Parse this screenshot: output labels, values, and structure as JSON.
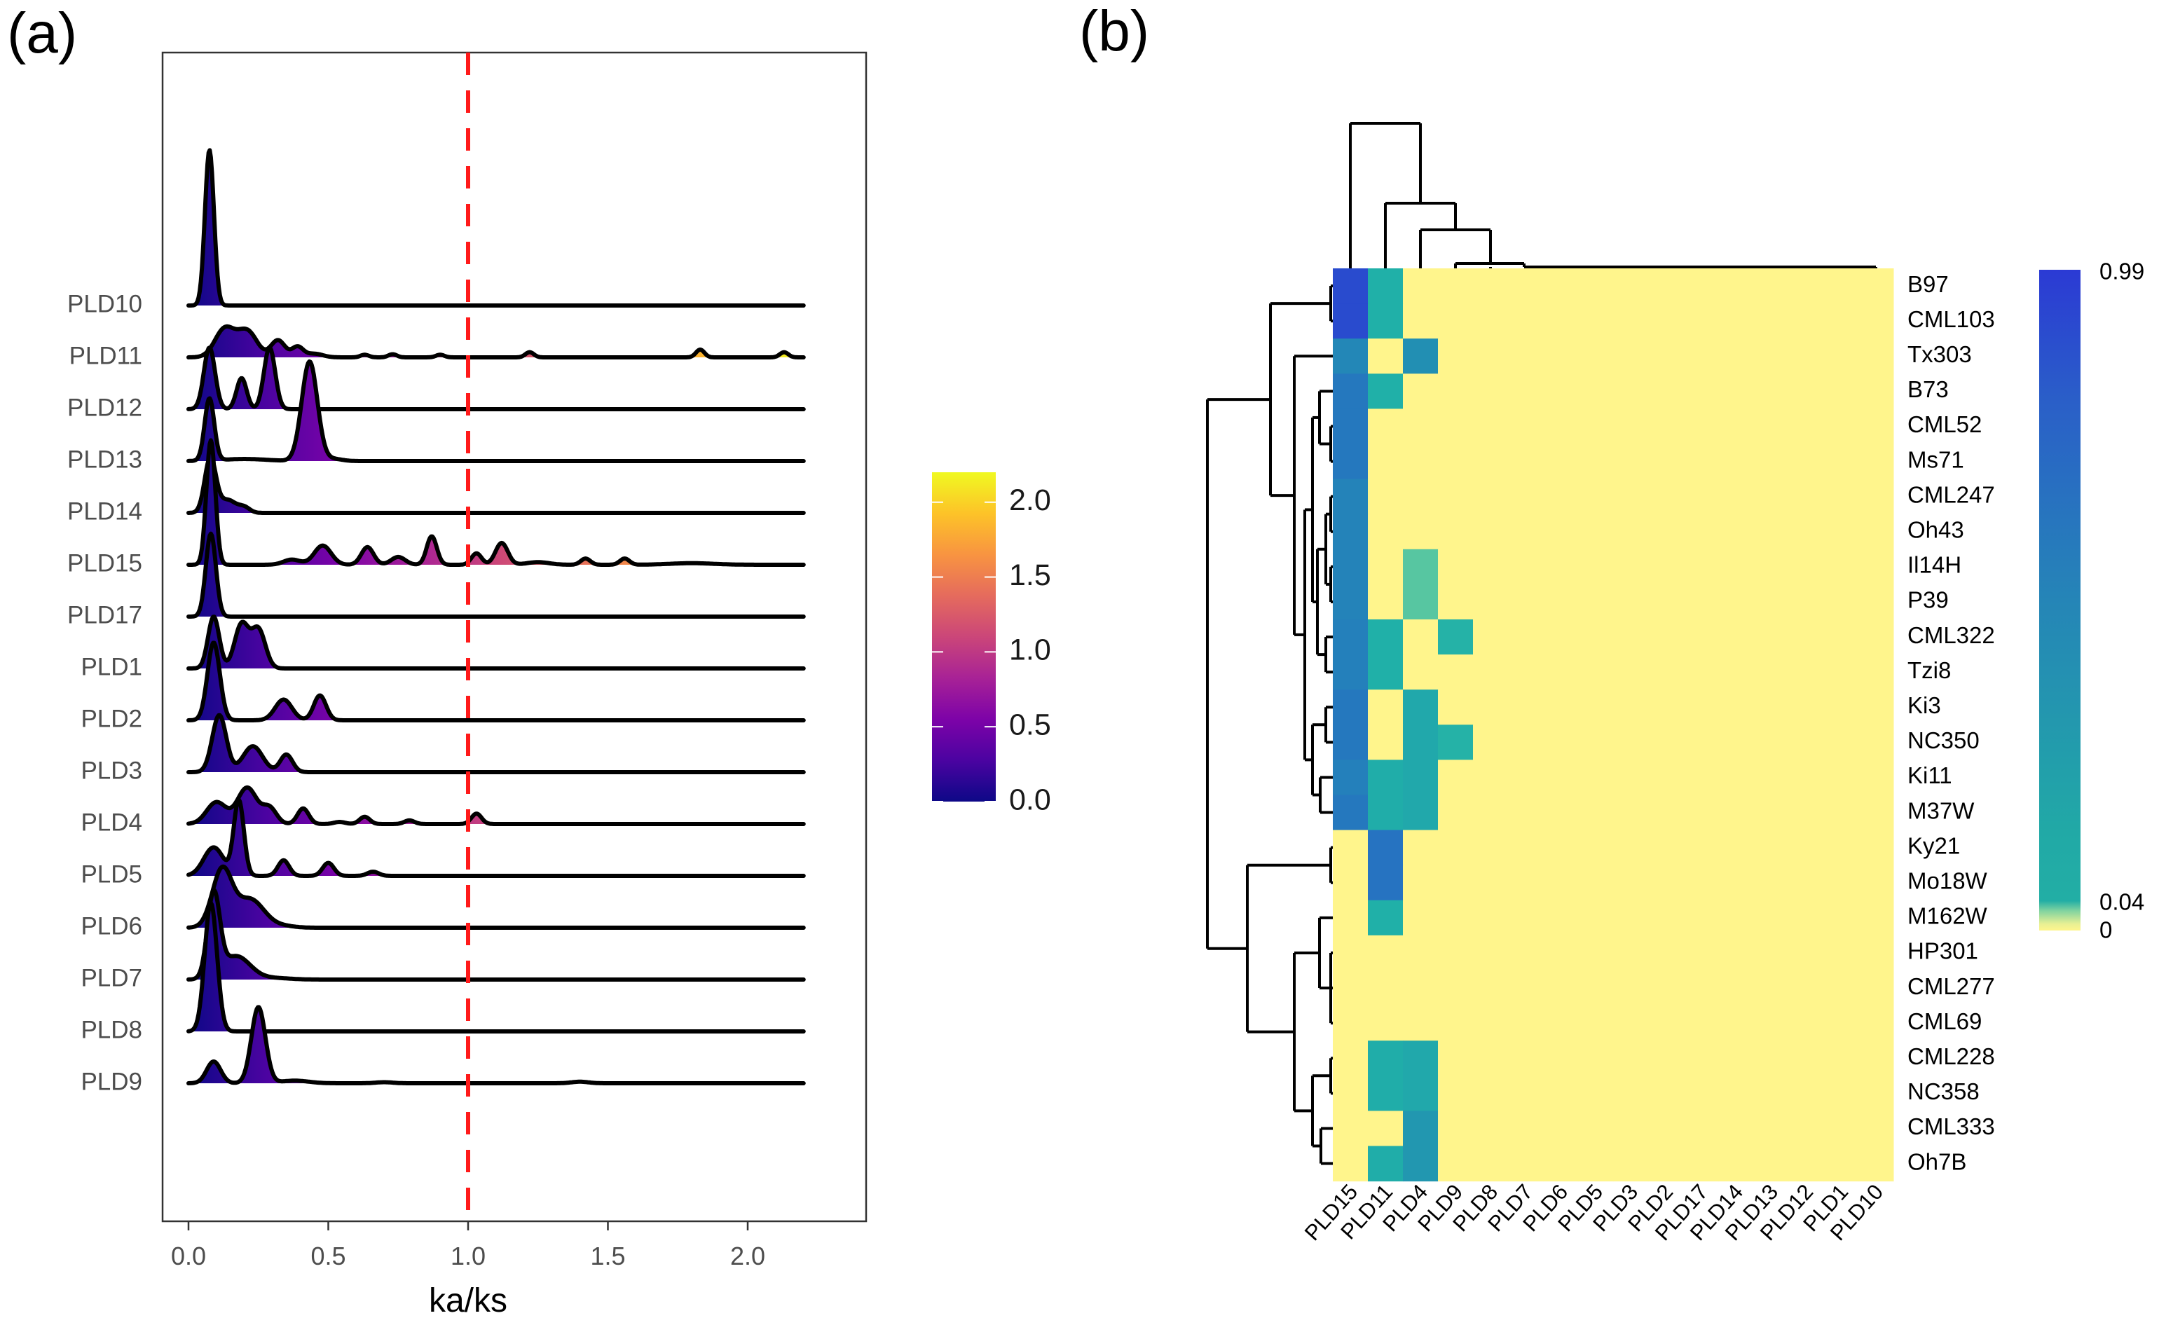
{
  "labels": {
    "a": "(a)",
    "b": "(b)"
  },
  "chart_data": [
    {
      "type": "ridgeline",
      "title": "",
      "xlabel": "ka/ks",
      "ylabel": "",
      "xlim": [
        0,
        2.2
      ],
      "xticks": [
        "0.0",
        "0.5",
        "1.0",
        "1.5",
        "2.0"
      ],
      "xtick_values": [
        0,
        0.5,
        1.0,
        1.5,
        2.0
      ],
      "reference_line": {
        "x": 1.0,
        "color": "#ff1a1a",
        "style": "dashed"
      },
      "grid": false,
      "peak_format": "[center ka/ks, relative density height, spread]",
      "series": [
        {
          "name": "PLD10",
          "peaks": [
            [
              0.075,
              3.0,
              0.016
            ]
          ]
        },
        {
          "name": "PLD11",
          "peaks": [
            [
              0.13,
              0.55,
              0.035
            ],
            [
              0.21,
              0.5,
              0.035
            ],
            [
              0.32,
              0.33,
              0.025
            ],
            [
              0.39,
              0.2,
              0.02
            ],
            [
              0.45,
              0.07,
              0.03
            ],
            [
              0.63,
              0.05,
              0.015
            ],
            [
              0.73,
              0.06,
              0.015
            ],
            [
              0.9,
              0.05,
              0.015
            ],
            [
              1.22,
              0.1,
              0.015
            ],
            [
              1.83,
              0.15,
              0.015
            ],
            [
              2.13,
              0.1,
              0.015
            ]
          ]
        },
        {
          "name": "PLD12",
          "peaks": [
            [
              0.075,
              1.19,
              0.02
            ],
            [
              0.19,
              0.6,
              0.018
            ],
            [
              0.29,
              1.19,
              0.02
            ]
          ]
        },
        {
          "name": "PLD13",
          "peaks": [
            [
              0.075,
              1.2,
              0.017
            ],
            [
              0.2,
              0.04,
              0.08
            ],
            [
              0.433,
              1.92,
              0.028
            ],
            [
              0.52,
              0.04,
              0.03
            ]
          ]
        },
        {
          "name": "PLD14",
          "peaks": [
            [
              0.078,
              1.05,
              0.02
            ],
            [
              0.14,
              0.25,
              0.03
            ],
            [
              0.2,
              0.1,
              0.02
            ]
          ]
        },
        {
          "name": "PLD15",
          "peaks": [
            [
              0.08,
              2.4,
              0.016
            ],
            [
              0.37,
              0.1,
              0.03
            ],
            [
              0.48,
              0.37,
              0.03
            ],
            [
              0.64,
              0.34,
              0.022
            ],
            [
              0.75,
              0.15,
              0.025
            ],
            [
              0.87,
              0.55,
              0.018
            ],
            [
              1.03,
              0.22,
              0.018
            ],
            [
              1.12,
              0.42,
              0.022
            ],
            [
              1.25,
              0.05,
              0.04
            ],
            [
              1.42,
              0.12,
              0.017
            ],
            [
              1.56,
              0.12,
              0.017
            ],
            [
              1.8,
              0.03,
              0.08
            ]
          ]
        },
        {
          "name": "PLD17",
          "peaks": [
            [
              0.08,
              1.6,
              0.018
            ]
          ]
        },
        {
          "name": "PLD1",
          "peaks": [
            [
              0.09,
              1.0,
              0.02
            ],
            [
              0.19,
              0.85,
              0.025
            ],
            [
              0.25,
              0.75,
              0.025
            ]
          ]
        },
        {
          "name": "PLD2",
          "peaks": [
            [
              0.09,
              1.5,
              0.022
            ],
            [
              0.34,
              0.4,
              0.03
            ],
            [
              0.47,
              0.48,
              0.022
            ]
          ]
        },
        {
          "name": "PLD3",
          "peaks": [
            [
              0.11,
              1.1,
              0.025
            ],
            [
              0.23,
              0.5,
              0.035
            ],
            [
              0.35,
              0.34,
              0.022
            ]
          ]
        },
        {
          "name": "PLD4",
          "peaks": [
            [
              0.1,
              0.42,
              0.035
            ],
            [
              0.21,
              0.7,
              0.035
            ],
            [
              0.29,
              0.3,
              0.025
            ],
            [
              0.41,
              0.3,
              0.02
            ],
            [
              0.54,
              0.04,
              0.02
            ],
            [
              0.63,
              0.14,
              0.018
            ],
            [
              0.79,
              0.07,
              0.018
            ],
            [
              1.03,
              0.2,
              0.018
            ]
          ]
        },
        {
          "name": "PLD5",
          "peaks": [
            [
              0.09,
              0.55,
              0.035
            ],
            [
              0.18,
              1.45,
              0.018
            ],
            [
              0.34,
              0.3,
              0.02
            ],
            [
              0.5,
              0.25,
              0.02
            ],
            [
              0.66,
              0.08,
              0.02
            ]
          ]
        },
        {
          "name": "PLD6",
          "peaks": [
            [
              0.12,
              1.1,
              0.035
            ],
            [
              0.22,
              0.55,
              0.05
            ],
            [
              0.34,
              0.03,
              0.04
            ]
          ]
        },
        {
          "name": "PLD7",
          "peaks": [
            [
              0.09,
              1.6,
              0.022
            ],
            [
              0.17,
              0.45,
              0.05
            ],
            [
              0.3,
              0.03,
              0.06
            ]
          ]
        },
        {
          "name": "PLD8",
          "peaks": [
            [
              0.08,
              2.48,
              0.022
            ]
          ]
        },
        {
          "name": "PLD9",
          "peaks": [
            [
              0.09,
              0.42,
              0.025
            ],
            [
              0.25,
              1.47,
              0.025
            ],
            [
              0.38,
              0.05,
              0.05
            ],
            [
              0.7,
              0.02,
              0.03
            ],
            [
              1.4,
              0.03,
              0.03
            ]
          ]
        }
      ],
      "colorbar": {
        "range": [
          0,
          2.2
        ],
        "ticks": [
          "0.0",
          "0.5",
          "1.0",
          "1.5",
          "2.0"
        ],
        "tick_values": [
          0,
          0.5,
          1.0,
          1.5,
          2.0
        ],
        "palette": [
          "#0d0887",
          "#4b03a1",
          "#7d03a8",
          "#a82296",
          "#cb4679",
          "#e56b5d",
          "#f89441",
          "#fdc328",
          "#f0f921"
        ]
      }
    },
    {
      "type": "heatmap",
      "rows": [
        "B97",
        "CML103",
        "Tx303",
        "B73",
        "CML52",
        "Ms71",
        "CML247",
        "Oh43",
        "Il14H",
        "P39",
        "CML322",
        "Tzi8",
        "Ki3",
        "NC350",
        "Ki11",
        "M37W",
        "Ky21",
        "Mo18W",
        "M162W",
        "HP301",
        "CML277",
        "CML69",
        "CML228",
        "NC358",
        "CML333",
        "Oh7B"
      ],
      "columns": [
        "PLD15",
        "PLD11",
        "PLD4",
        "PLD9",
        "PLD8",
        "PLD7",
        "PLD6",
        "PLD5",
        "PLD3",
        "PLD2",
        "PLD17",
        "PLD14",
        "PLD13",
        "PLD12",
        "PLD1",
        "PLD10"
      ],
      "values": [
        [
          0.9,
          0.3,
          0,
          0,
          0,
          0,
          0,
          0,
          0,
          0,
          0,
          0,
          0,
          0,
          0,
          0
        ],
        [
          0.9,
          0.3,
          0,
          0,
          0,
          0,
          0,
          0,
          0,
          0,
          0,
          0,
          0,
          0,
          0,
          0
        ],
        [
          0.55,
          0,
          0.5,
          0,
          0,
          0,
          0,
          0,
          0,
          0,
          0,
          0,
          0,
          0,
          0,
          0
        ],
        [
          0.65,
          0.3,
          0,
          0,
          0,
          0,
          0,
          0,
          0,
          0,
          0,
          0,
          0,
          0,
          0,
          0
        ],
        [
          0.65,
          0,
          0,
          0,
          0,
          0,
          0,
          0,
          0,
          0,
          0,
          0,
          0,
          0,
          0,
          0
        ],
        [
          0.65,
          0,
          0,
          0,
          0,
          0,
          0,
          0,
          0,
          0,
          0,
          0,
          0,
          0,
          0,
          0
        ],
        [
          0.58,
          0,
          0,
          0,
          0,
          0,
          0,
          0,
          0,
          0,
          0,
          0,
          0,
          0,
          0,
          0
        ],
        [
          0.58,
          0,
          0,
          0,
          0,
          0,
          0,
          0,
          0,
          0,
          0,
          0,
          0,
          0,
          0,
          0
        ],
        [
          0.58,
          0,
          0.06,
          0,
          0,
          0,
          0,
          0,
          0,
          0,
          0,
          0,
          0,
          0,
          0,
          0
        ],
        [
          0.58,
          0,
          0.06,
          0,
          0,
          0,
          0,
          0,
          0,
          0,
          0,
          0,
          0,
          0,
          0,
          0
        ],
        [
          0.6,
          0.3,
          0,
          0.28,
          0,
          0,
          0,
          0,
          0,
          0,
          0,
          0,
          0,
          0,
          0,
          0
        ],
        [
          0.6,
          0.3,
          0,
          0,
          0,
          0,
          0,
          0,
          0,
          0,
          0,
          0,
          0,
          0,
          0,
          0
        ],
        [
          0.65,
          0,
          0.35,
          0,
          0,
          0,
          0,
          0,
          0,
          0,
          0,
          0,
          0,
          0,
          0,
          0
        ],
        [
          0.65,
          0,
          0.35,
          0.28,
          0,
          0,
          0,
          0,
          0,
          0,
          0,
          0,
          0,
          0,
          0,
          0
        ],
        [
          0.6,
          0.32,
          0.35,
          0,
          0,
          0,
          0,
          0,
          0,
          0,
          0,
          0,
          0,
          0,
          0,
          0
        ],
        [
          0.65,
          0.32,
          0.35,
          0,
          0,
          0,
          0,
          0,
          0,
          0,
          0,
          0,
          0,
          0,
          0,
          0
        ],
        [
          0,
          0.68,
          0,
          0,
          0,
          0,
          0,
          0,
          0,
          0,
          0,
          0,
          0,
          0,
          0,
          0
        ],
        [
          0,
          0.68,
          0,
          0,
          0,
          0,
          0,
          0,
          0,
          0,
          0,
          0,
          0,
          0,
          0,
          0
        ],
        [
          0,
          0.3,
          0,
          0,
          0,
          0,
          0,
          0,
          0,
          0,
          0,
          0,
          0,
          0,
          0,
          0
        ],
        [
          0,
          0,
          0,
          0,
          0,
          0,
          0,
          0,
          0,
          0,
          0,
          0,
          0,
          0,
          0,
          0
        ],
        [
          0,
          0,
          0,
          0,
          0,
          0,
          0,
          0,
          0,
          0,
          0,
          0,
          0,
          0,
          0,
          0
        ],
        [
          0,
          0,
          0,
          0,
          0,
          0,
          0,
          0,
          0,
          0,
          0,
          0,
          0,
          0,
          0,
          0
        ],
        [
          0,
          0.32,
          0.35,
          0,
          0,
          0,
          0,
          0,
          0,
          0,
          0,
          0,
          0,
          0,
          0,
          0
        ],
        [
          0,
          0.32,
          0.35,
          0,
          0,
          0,
          0,
          0,
          0,
          0,
          0,
          0,
          0,
          0,
          0,
          0
        ],
        [
          0,
          0,
          0.45,
          0,
          0,
          0,
          0,
          0,
          0,
          0,
          0,
          0,
          0,
          0,
          0,
          0
        ],
        [
          0,
          0.32,
          0.45,
          0,
          0,
          0,
          0,
          0,
          0,
          0,
          0,
          0,
          0,
          0,
          0,
          0
        ]
      ],
      "colorbar": {
        "ticks": [
          "0.99",
          "0.04",
          "0"
        ],
        "range": [
          0,
          0.99
        ],
        "low_color": "#fff58c",
        "mid_color": "#20b0a8",
        "high_color": "#2b3ad4"
      },
      "row_dendrogram": true,
      "column_dendrogram": true
    }
  ]
}
